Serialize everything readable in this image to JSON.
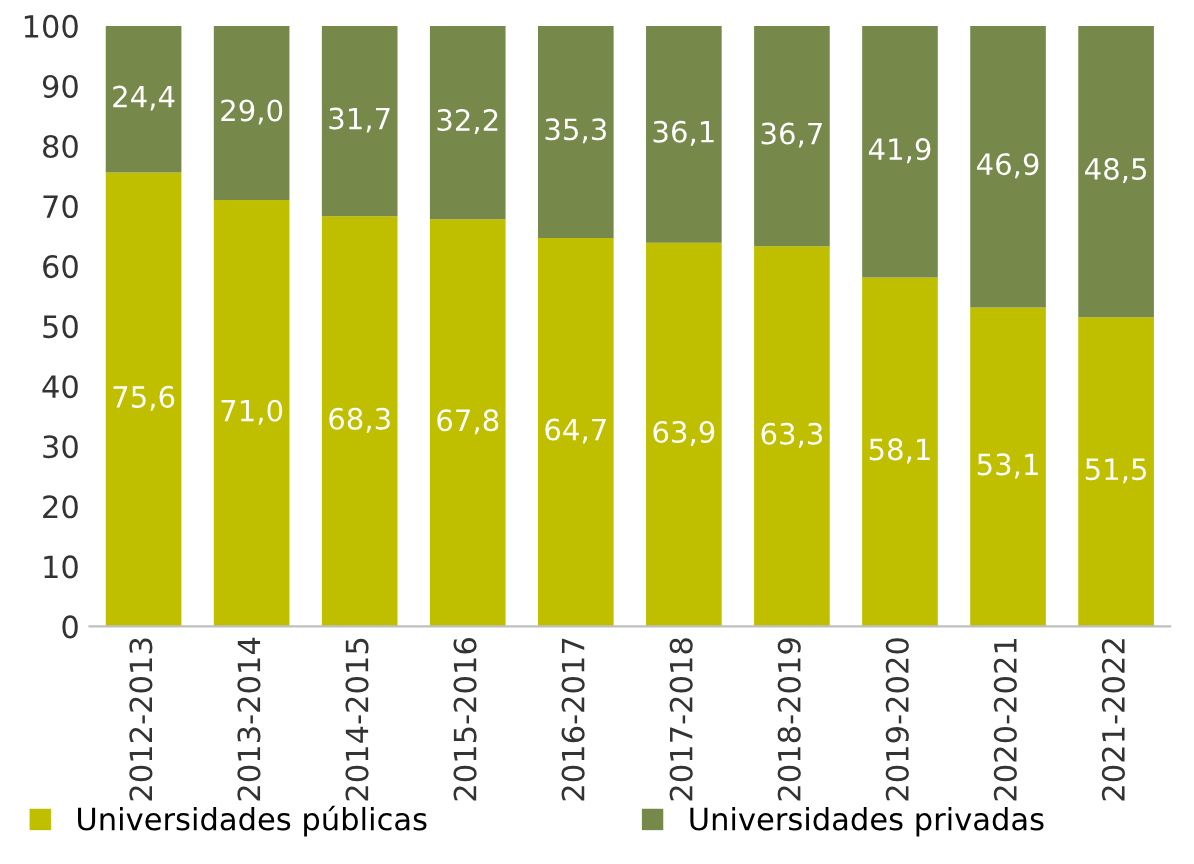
{
  "chart_data": {
    "type": "bar",
    "stacked": true,
    "categories": [
      "2012-2013",
      "2013-2014",
      "2014-2015",
      "2015-2016",
      "2016-2017",
      "2017-2018",
      "2018-2019",
      "2019-2020",
      "2020-2021",
      "2021-2022"
    ],
    "series": [
      {
        "name": "Universidades públicas",
        "color": "#bfbf00",
        "values": [
          75.6,
          71.0,
          68.3,
          67.8,
          64.7,
          63.9,
          63.3,
          58.1,
          53.1,
          51.5
        ],
        "value_labels": [
          "75,6",
          "71,0",
          "68,3",
          "67,8",
          "64,7",
          "63,9",
          "63,3",
          "58,1",
          "53,1",
          "51,5"
        ]
      },
      {
        "name": "Universidades privadas",
        "color": "#76894a",
        "values": [
          24.4,
          29.0,
          31.7,
          32.2,
          35.3,
          36.1,
          36.7,
          41.9,
          46.9,
          48.5
        ],
        "value_labels": [
          "24,4",
          "29,0",
          "31,7",
          "32,2",
          "35,3",
          "36,1",
          "36,7",
          "41,9",
          "46,9",
          "48,5"
        ]
      }
    ],
    "ylim": [
      0,
      100
    ],
    "yticks": [
      0,
      10,
      20,
      30,
      40,
      50,
      60,
      70,
      80,
      90,
      100
    ],
    "grid": false,
    "legend": "bottom"
  }
}
